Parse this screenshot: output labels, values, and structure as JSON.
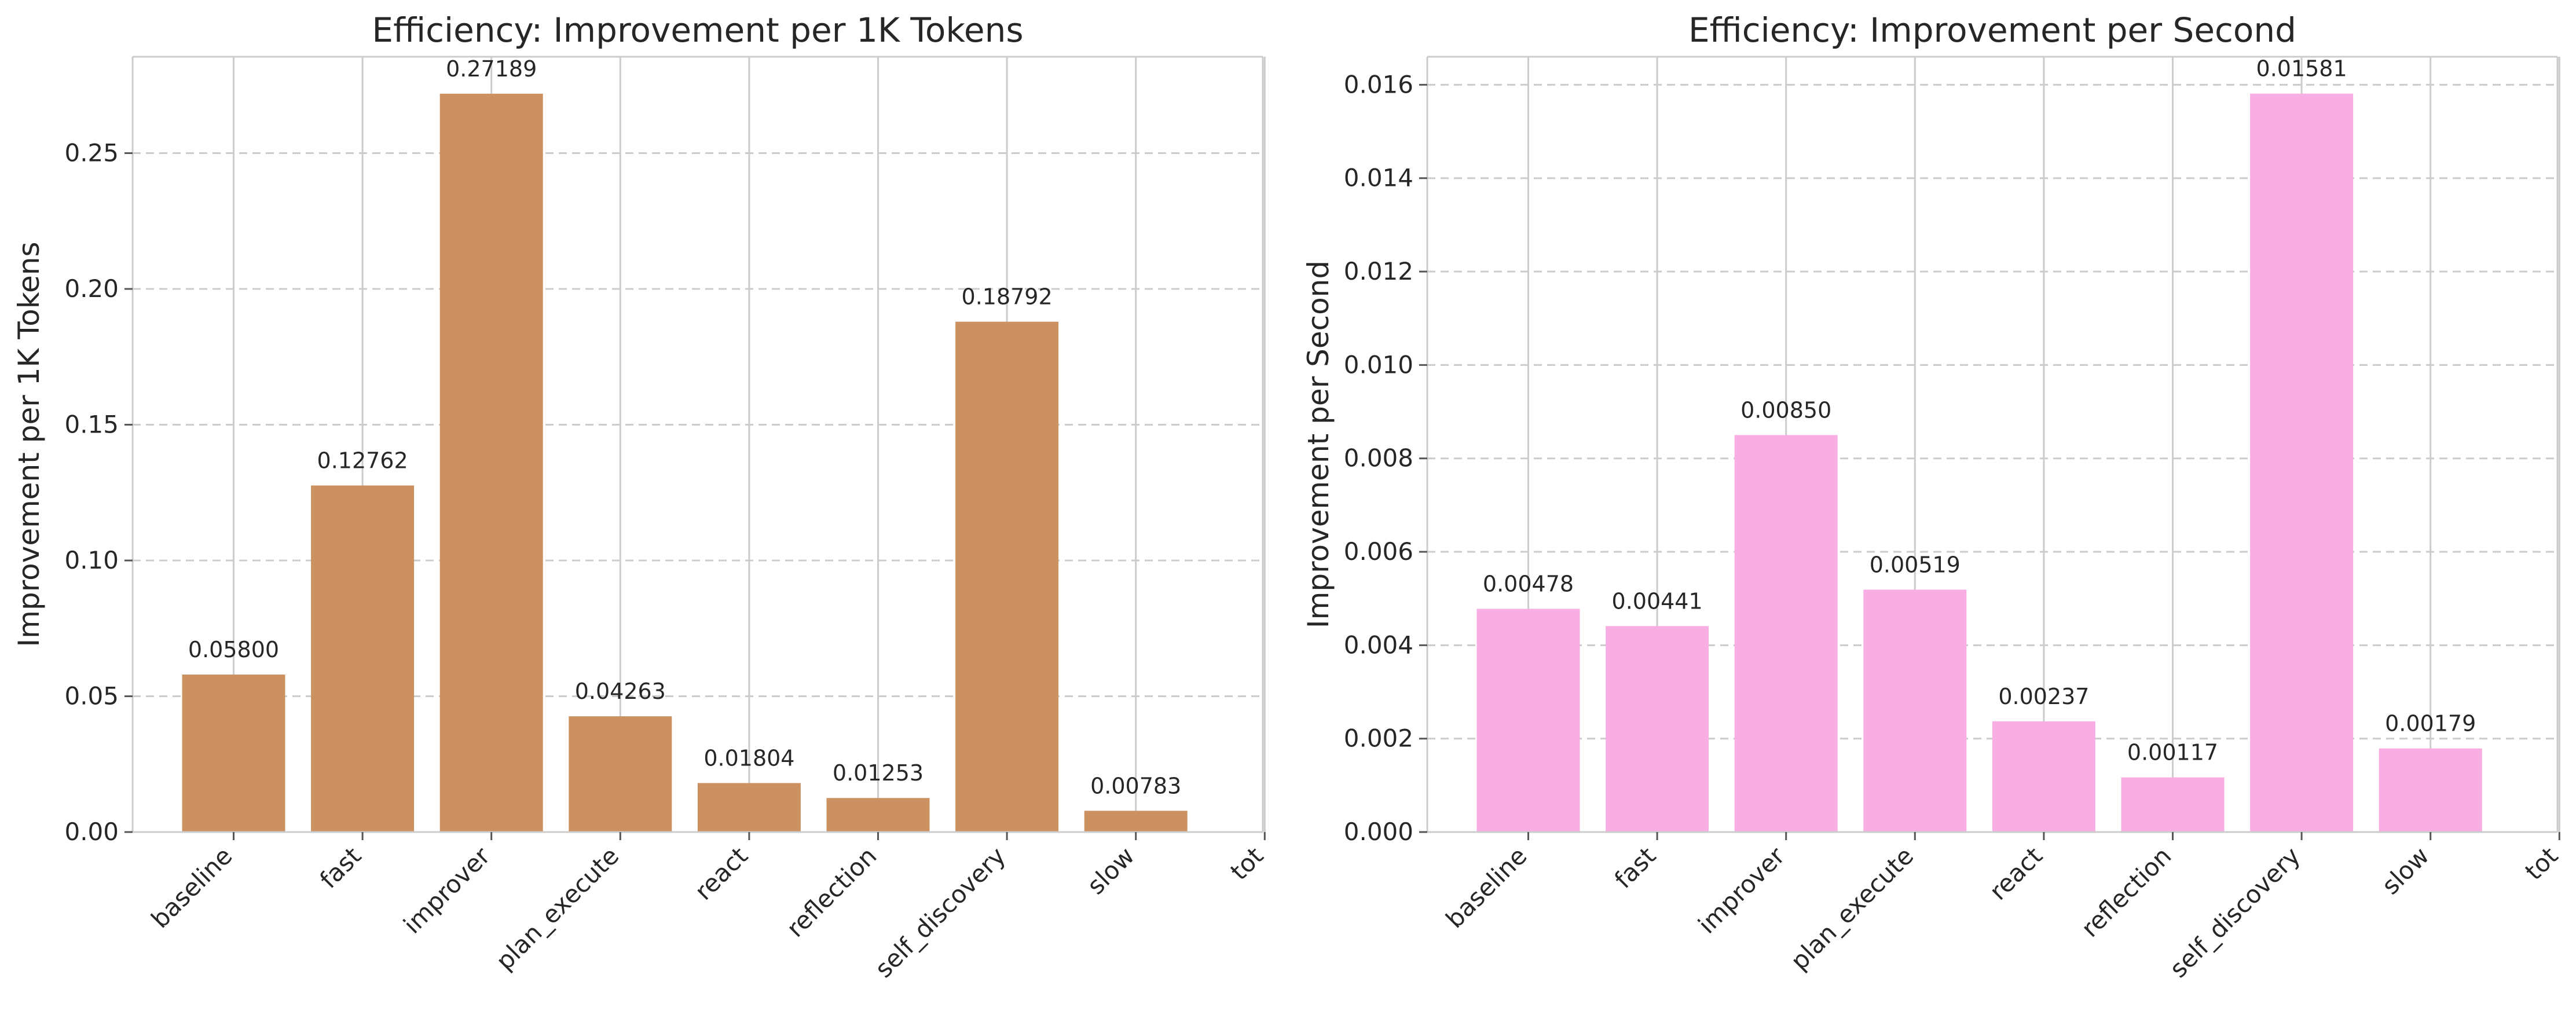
{
  "chart_data": [
    {
      "type": "bar",
      "title": "Efficiency: Improvement per 1K Tokens",
      "xlabel": "",
      "ylabel": "Improvement per 1K Tokens",
      "categories": [
        "baseline",
        "fast",
        "improver",
        "plan_execute",
        "react",
        "reflection",
        "self_discovery",
        "slow",
        "tot"
      ],
      "values": [
        0.058,
        0.12762,
        0.27189,
        0.04263,
        0.01804,
        0.01253,
        0.18792,
        0.00783,
        null
      ],
      "value_labels": [
        "0.05800",
        "0.12762",
        "0.27189",
        "0.04263",
        "0.01804",
        "0.01253",
        "0.18792",
        "0.00783",
        ""
      ],
      "yticks": [
        "0.00",
        "0.05",
        "0.10",
        "0.15",
        "0.20",
        "0.25"
      ],
      "ytick_values": [
        0,
        0.05,
        0.1,
        0.15,
        0.2,
        0.25
      ],
      "ylim": [
        0,
        0.2855
      ],
      "bar_color": "#cb9160",
      "grid": true
    },
    {
      "type": "bar",
      "title": "Efficiency: Improvement per Second",
      "xlabel": "",
      "ylabel": "Improvement per Second",
      "categories": [
        "baseline",
        "fast",
        "improver",
        "plan_execute",
        "react",
        "reflection",
        "self_discovery",
        "slow",
        "tot"
      ],
      "values": [
        0.00478,
        0.00441,
        0.0085,
        0.00519,
        0.00237,
        0.00117,
        0.01581,
        0.00179,
        null
      ],
      "value_labels": [
        "0.00478",
        "0.00441",
        "0.00850",
        "0.00519",
        "0.00237",
        "0.00117",
        "0.01581",
        "0.00179",
        ""
      ],
      "yticks": [
        "0.000",
        "0.002",
        "0.004",
        "0.006",
        "0.008",
        "0.010",
        "0.012",
        "0.014",
        "0.016"
      ],
      "ytick_values": [
        0,
        0.002,
        0.004,
        0.006,
        0.008,
        0.01,
        0.012,
        0.014,
        0.016
      ],
      "ylim": [
        0,
        0.0166
      ],
      "bar_color": "#f9aee3",
      "grid": true
    }
  ]
}
